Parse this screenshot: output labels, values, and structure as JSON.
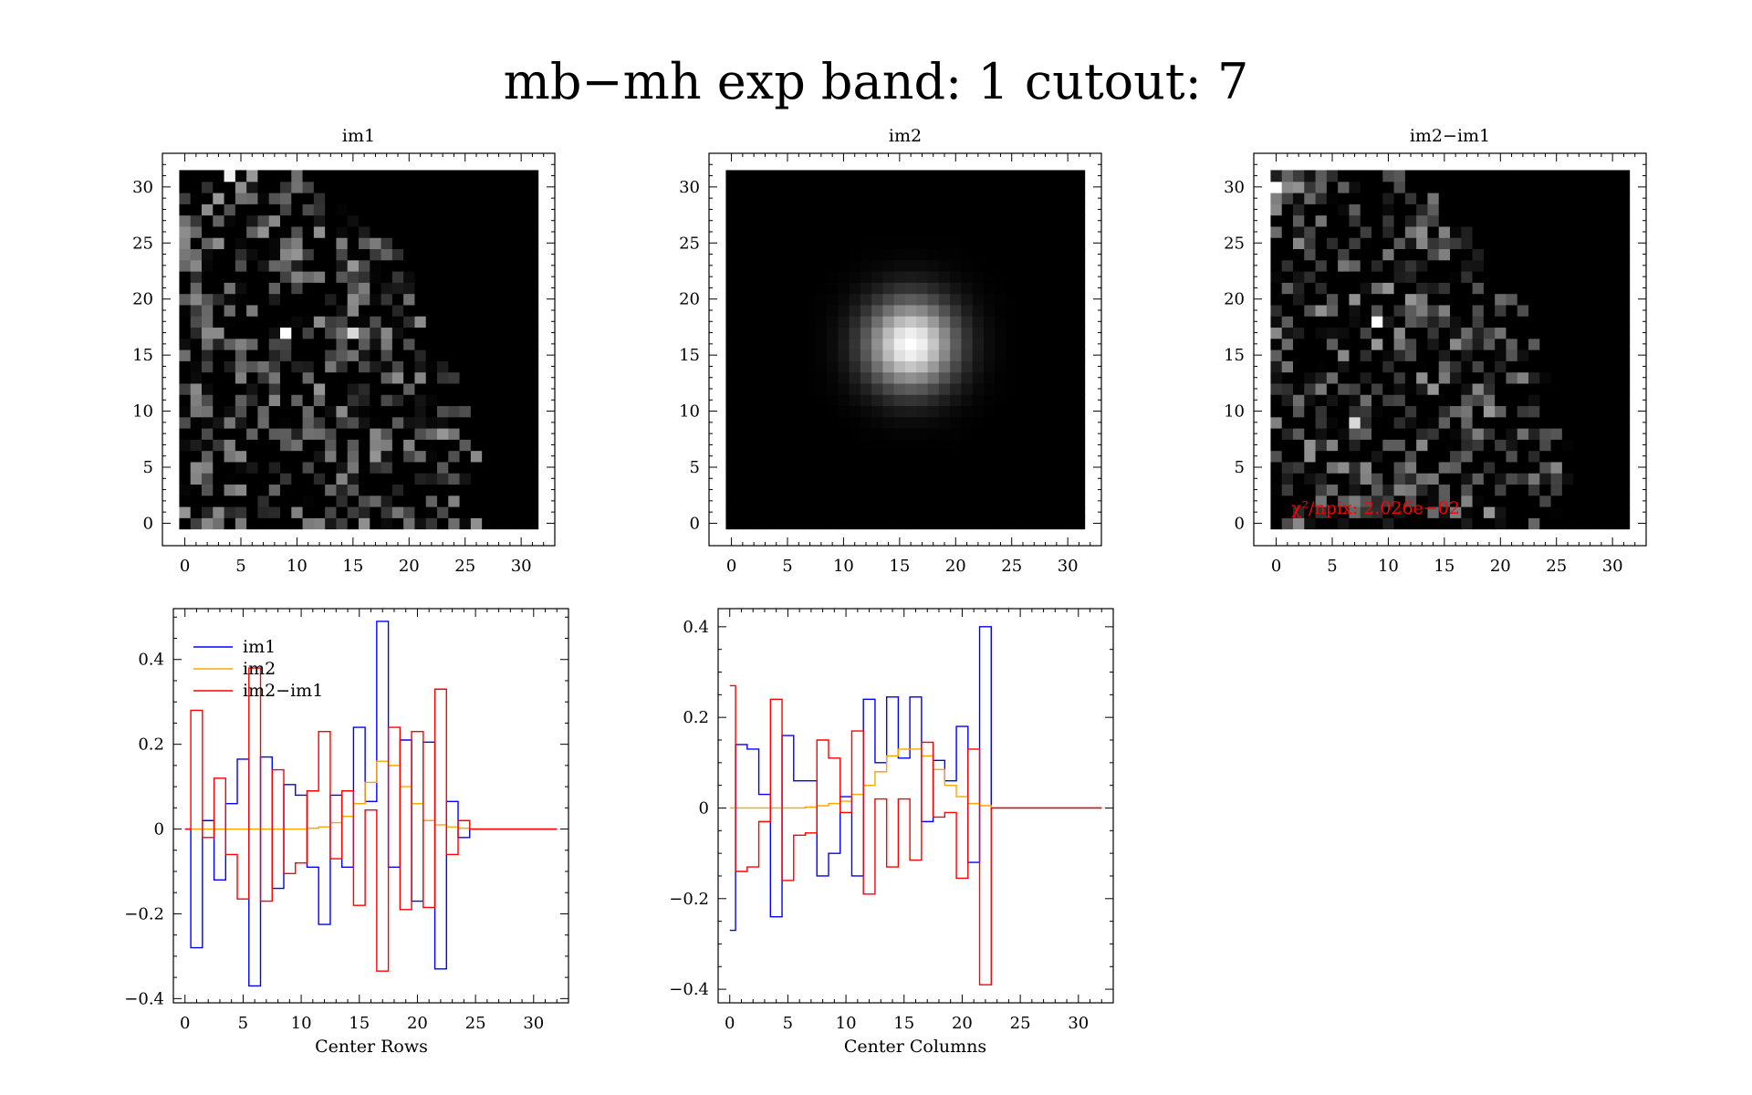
{
  "title": "mb−mh exp band: 1 cutout: 7",
  "colors": {
    "im1": "#0000ff",
    "im2": "#ffa500",
    "diff": "#ff0000",
    "annotation": "#ff0000"
  },
  "chart_data": [
    {
      "type": "heatmap",
      "title": "im1",
      "xlim": [
        -2,
        33
      ],
      "ylim": [
        -2,
        33
      ],
      "xticks": [
        "0",
        "5",
        "10",
        "15",
        "20",
        "25",
        "30"
      ],
      "yticks": [
        "0",
        "5",
        "10",
        "15",
        "20",
        "25",
        "30"
      ],
      "grid_size": [
        32,
        32
      ],
      "pattern": "noise-wedge",
      "hot_pixels": [
        {
          "x": 9,
          "y": 17,
          "v": 1.0
        },
        {
          "x": 15,
          "y": 17,
          "v": 0.85
        },
        {
          "x": 4,
          "y": 31,
          "v": 0.95
        }
      ]
    },
    {
      "type": "heatmap",
      "title": "im2",
      "xlim": [
        -2,
        33
      ],
      "ylim": [
        -2,
        33
      ],
      "xticks": [
        "0",
        "5",
        "10",
        "15",
        "20",
        "25",
        "30"
      ],
      "yticks": [
        "0",
        "5",
        "10",
        "15",
        "20",
        "25",
        "30"
      ],
      "grid_size": [
        32,
        32
      ],
      "pattern": "gaussian",
      "center": [
        16,
        16
      ],
      "sigma": 2.8
    },
    {
      "type": "heatmap",
      "title": "im2−im1",
      "xlim": [
        -2,
        33
      ],
      "ylim": [
        -2,
        33
      ],
      "xticks": [
        "0",
        "5",
        "10",
        "15",
        "20",
        "25",
        "30"
      ],
      "yticks": [
        "0",
        "5",
        "10",
        "15",
        "20",
        "25",
        "30"
      ],
      "grid_size": [
        32,
        32
      ],
      "pattern": "noise-wedge",
      "hot_pixels": [
        {
          "x": 0,
          "y": 30,
          "v": 1.0
        },
        {
          "x": 9,
          "y": 18,
          "v": 1.0
        },
        {
          "x": 7,
          "y": 9,
          "v": 0.85
        }
      ],
      "annotation": "χ²/npix: 2.026e−02"
    },
    {
      "type": "line",
      "step": true,
      "xlabel": "Center Rows",
      "xlim": [
        -1,
        33
      ],
      "ylim": [
        -0.41,
        0.52
      ],
      "xticks": [
        0,
        5,
        10,
        15,
        20,
        25,
        30
      ],
      "yticks": [
        -0.4,
        -0.2,
        0,
        0.2,
        0.4
      ],
      "ytick_labels": [
        "−0.4",
        "−0.2",
        "0",
        "0.2",
        "0.4"
      ],
      "legend_position": "top-left",
      "x": [
        0,
        1,
        2,
        3,
        4,
        5,
        6,
        7,
        8,
        9,
        10,
        11,
        12,
        13,
        14,
        15,
        16,
        17,
        18,
        19,
        20,
        21,
        22,
        23,
        24,
        25,
        26,
        27,
        28,
        29,
        30,
        31,
        32
      ],
      "series": [
        {
          "name": "im1",
          "values": [
            0,
            -0.28,
            0.02,
            -0.12,
            0.06,
            0.165,
            -0.37,
            0.17,
            -0.14,
            0.105,
            0.08,
            -0.09,
            -0.225,
            0.08,
            -0.09,
            0.24,
            0.065,
            0.49,
            -0.09,
            0.21,
            -0.17,
            0.205,
            -0.33,
            0.065,
            -0.02,
            0,
            0,
            0,
            0,
            0,
            0,
            0,
            0
          ]
        },
        {
          "name": "im2",
          "values": [
            0,
            0,
            0,
            0,
            0,
            0,
            0,
            0,
            0,
            0,
            0,
            0.002,
            0.005,
            0.015,
            0.03,
            0.06,
            0.11,
            0.16,
            0.15,
            0.1,
            0.06,
            0.02,
            0.01,
            0.005,
            0.002,
            0,
            0,
            0,
            0,
            0,
            0,
            0,
            0
          ]
        },
        {
          "name": "im2−im1",
          "values": [
            0,
            0.28,
            -0.02,
            0.12,
            -0.06,
            -0.165,
            0.38,
            -0.17,
            0.14,
            -0.105,
            -0.08,
            0.09,
            0.23,
            -0.07,
            0.09,
            -0.18,
            0.045,
            -0.335,
            0.24,
            -0.19,
            0.23,
            -0.185,
            0.33,
            -0.06,
            0.02,
            0,
            0,
            0,
            0,
            0,
            0,
            0,
            0
          ]
        }
      ]
    },
    {
      "type": "line",
      "step": true,
      "xlabel": "Center Columns",
      "xlim": [
        -1,
        33
      ],
      "ylim": [
        -0.43,
        0.44
      ],
      "xticks": [
        0,
        5,
        10,
        15,
        20,
        25,
        30
      ],
      "yticks": [
        -0.4,
        -0.2,
        0,
        0.2,
        0.4
      ],
      "ytick_labels": [
        "−0.4",
        "−0.2",
        "0",
        "0.2",
        "0.4"
      ],
      "x": [
        0,
        1,
        2,
        3,
        4,
        5,
        6,
        7,
        8,
        9,
        10,
        11,
        12,
        13,
        14,
        15,
        16,
        17,
        18,
        19,
        20,
        21,
        22,
        23,
        24,
        25,
        26,
        27,
        28,
        29,
        30,
        31,
        32
      ],
      "series": [
        {
          "name": "im1",
          "values": [
            -0.27,
            0.14,
            0.13,
            0.03,
            -0.24,
            0.16,
            0.06,
            0.06,
            -0.15,
            -0.1,
            0.025,
            -0.15,
            0.24,
            0.1,
            0.245,
            0.11,
            0.245,
            -0.03,
            0.105,
            0.06,
            0.18,
            -0.12,
            0.4,
            0,
            0,
            0,
            0,
            0,
            0,
            0,
            0,
            0,
            0
          ]
        },
        {
          "name": "im2",
          "values": [
            0,
            0,
            0,
            0,
            0,
            0,
            0,
            0.002,
            0.005,
            0.01,
            0.015,
            0.03,
            0.05,
            0.08,
            0.115,
            0.13,
            0.13,
            0.115,
            0.085,
            0.05,
            0.025,
            0.01,
            0.005,
            0,
            0,
            0,
            0,
            0,
            0,
            0,
            0,
            0,
            0
          ]
        },
        {
          "name": "im2−im1",
          "values": [
            0.27,
            -0.14,
            -0.13,
            -0.03,
            0.24,
            -0.16,
            -0.06,
            -0.055,
            0.15,
            0.11,
            -0.01,
            0.17,
            -0.19,
            0.02,
            -0.13,
            0.02,
            -0.115,
            0.145,
            -0.02,
            -0.01,
            -0.155,
            0.13,
            -0.39,
            0,
            0,
            0,
            0,
            0,
            0,
            0,
            0,
            0,
            0
          ]
        }
      ]
    }
  ]
}
